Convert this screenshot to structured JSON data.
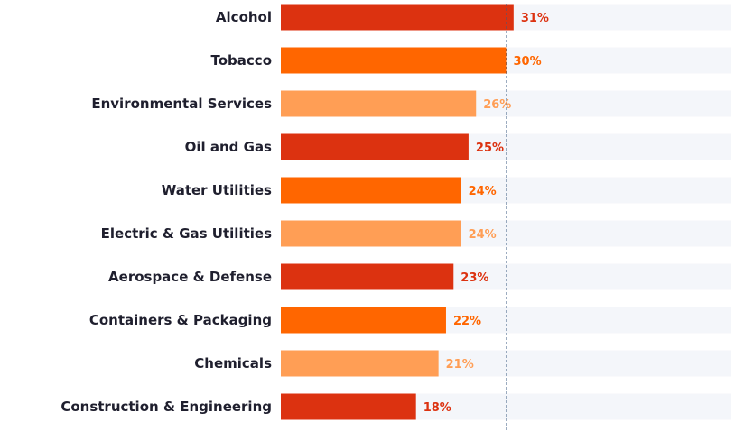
{
  "chart_data": {
    "type": "bar",
    "orientation": "horizontal",
    "categories": [
      "Alcohol",
      "Tobacco",
      "Environmental Services",
      "Oil and Gas",
      "Water Utilities",
      "Electric & Gas Utilities",
      "Aerospace & Defense",
      "Containers & Packaging",
      "Chemicals",
      "Construction & Engineering"
    ],
    "values": [
      31,
      30,
      26,
      25,
      24,
      24,
      23,
      22,
      21,
      18
    ],
    "value_labels": [
      "31%",
      "30%",
      "26%",
      "25%",
      "24%",
      "24%",
      "23%",
      "22%",
      "21%",
      "18%"
    ],
    "unit": "%",
    "xlim": [
      0,
      60
    ],
    "reference_line": 30,
    "bar_colors": [
      "#dc3210",
      "#ff6600",
      "#ff9e55",
      "#dc3210",
      "#ff6600",
      "#ff9e55",
      "#dc3210",
      "#ff6600",
      "#ff9e55",
      "#dc3210"
    ],
    "label_colors": [
      "#dc3210",
      "#ff6600",
      "#ff9e55",
      "#dc3210",
      "#ff6600",
      "#ff9e55",
      "#dc3210",
      "#ff6600",
      "#ff9e55",
      "#dc3210"
    ],
    "track_color": "#f4f6fa",
    "reference_line_color": "#3a5a80",
    "grid": false,
    "legend": "none"
  }
}
